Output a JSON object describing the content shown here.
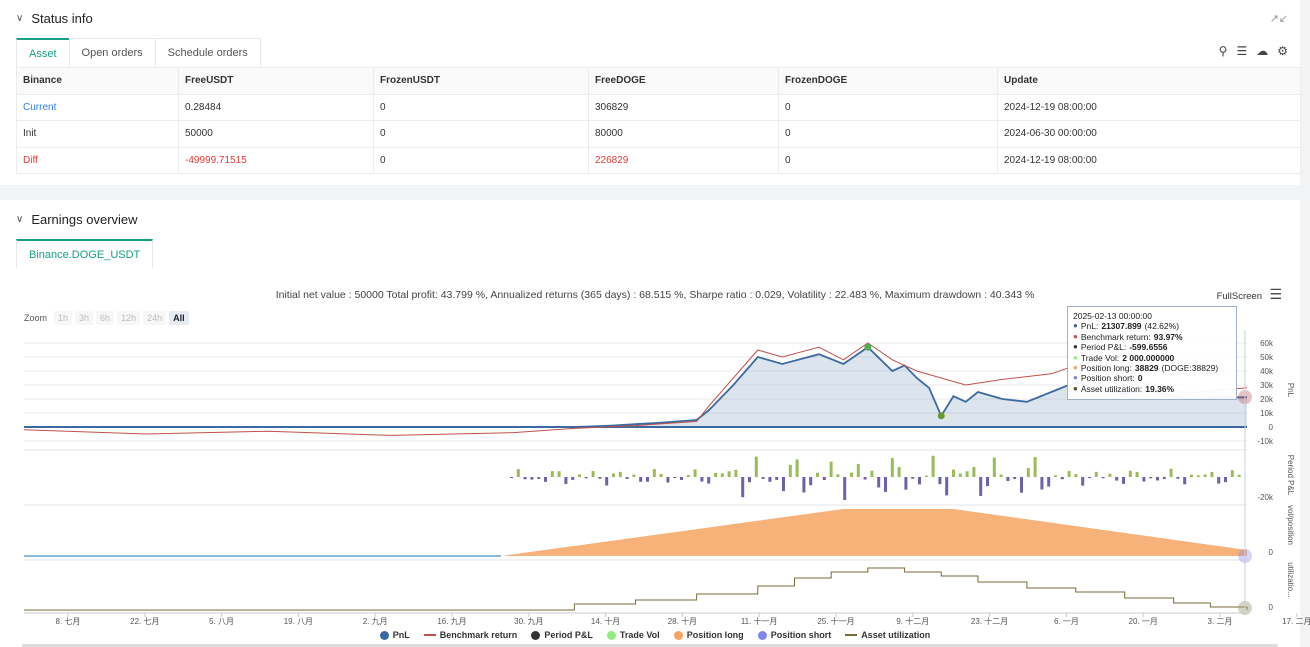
{
  "status": {
    "title": "Status info",
    "tabs": [
      "Asset",
      "Open orders",
      "Schedule orders"
    ],
    "columns": [
      "Binance",
      "FreeUSDT",
      "FrozenUSDT",
      "FreeDOGE",
      "FrozenDOGE",
      "Update"
    ],
    "rows": [
      [
        "Current",
        "0.28484",
        "0",
        "306829",
        "0",
        "2024-12-19 08:00:00"
      ],
      [
        "Init",
        "50000",
        "0",
        "80000",
        "0",
        "2024-06-30 00:00:00"
      ],
      [
        "Diff",
        "-49999.71515",
        "0",
        "226829",
        "0",
        "2024-12-19 08:00:00"
      ]
    ]
  },
  "earnings": {
    "title": "Earnings overview",
    "tab": "Binance.DOGE_USDT",
    "summary": "Initial net value : 50000 Total profit: 43.799 %, Annualized returns (365 days) : 68.515 %, Sharpe ratio : 0.029, Volatility : 22.483 %, Maximum drawdown : 40.343 %",
    "fullscreen": "FullScreen",
    "zoom_label": "Zoom",
    "zoom_buttons": [
      "1h",
      "3h",
      "6h",
      "12h",
      "24h",
      "All"
    ]
  },
  "tooltip": {
    "date": "2025-02-13 00:00:00",
    "rows": [
      {
        "label": "PnL:",
        "value": "21307.899",
        "extra": "(42.62%)",
        "color": "#3b6aa0"
      },
      {
        "label": "Benchmark return:",
        "value": "93.97%",
        "extra": "",
        "color": "#c0504d"
      },
      {
        "label": "Period P&L:",
        "value": "-599.6556",
        "extra": "",
        "color": "#333333"
      },
      {
        "label": "Trade Vol:",
        "value": "2 000.000000",
        "extra": "",
        "color": "#90ed7d"
      },
      {
        "label": "Position long:",
        "value": "38829",
        "extra": "(DOGE:38829)",
        "color": "#f7a35c"
      },
      {
        "label": "Position short:",
        "value": "0",
        "extra": "",
        "color": "#8085e9"
      },
      {
        "label": "Asset utilization:",
        "value": "19.36%",
        "extra": "",
        "color": "#5a4a2a"
      }
    ]
  },
  "legend": [
    {
      "name": "PnL",
      "color": "#3b6aa0",
      "kind": "dot"
    },
    {
      "name": "Benchmark return",
      "color": "#c0504d",
      "kind": "line"
    },
    {
      "name": "Period P&L",
      "color": "#333333",
      "kind": "dot"
    },
    {
      "name": "Trade Vol",
      "color": "#90ed7d",
      "kind": "dot"
    },
    {
      "name": "Position long",
      "color": "#f7a35c",
      "kind": "dot"
    },
    {
      "name": "Position short",
      "color": "#8085e9",
      "kind": "dot"
    },
    {
      "name": "Asset utilization",
      "color": "#7a6a3a",
      "kind": "line"
    }
  ],
  "chart_data": {
    "type": "line",
    "x_tick_labels": [
      "8. 七月",
      "22. 七月",
      "5. 八月",
      "19. 八月",
      "2. 九月",
      "16. 九月",
      "30. 九月",
      "14. 十月",
      "28. 十月",
      "11. 十一月",
      "25. 十一月",
      "9. 十二月",
      "23. 十二月",
      "6. 一月",
      "20. 一月",
      "3. 二月",
      "17. 二月"
    ],
    "panels": [
      {
        "name": "PnL",
        "y_ticks": [
          "60k",
          "50k",
          "40k",
          "30k",
          "20k",
          "10k",
          "0",
          "-10k"
        ],
        "ylim": [
          -10000,
          60000
        ]
      },
      {
        "name": "Period P&L",
        "y_ticks": [
          "-20k"
        ]
      },
      {
        "name": "vol/position",
        "y_ticks": [
          "0"
        ]
      },
      {
        "name": "utilizatio...",
        "y_ticks": [
          "0"
        ]
      }
    ],
    "series": [
      {
        "name": "PnL",
        "x": [
          0,
          0.15,
          0.3,
          0.45,
          0.48,
          0.5,
          0.52,
          0.55,
          0.56,
          0.58,
          0.6,
          0.62,
          0.65,
          0.67,
          0.69,
          0.71,
          0.72,
          0.73,
          0.74,
          0.75,
          0.76,
          0.77,
          0.78,
          0.8,
          0.82,
          0.84,
          0.86,
          0.88,
          0.9,
          0.92,
          0.95,
          0.98,
          1.0
        ],
        "values": [
          0,
          0,
          0,
          0,
          1000,
          2000,
          3000,
          5000,
          12000,
          30000,
          50000,
          45000,
          52000,
          45000,
          57000,
          40000,
          44000,
          35000,
          28000,
          8000,
          22000,
          18000,
          25000,
          20000,
          18000,
          25000,
          32000,
          26000,
          24000,
          26000,
          20000,
          21000,
          21307.899
        ]
      },
      {
        "name": "Benchmark return",
        "x": [
          0,
          0.1,
          0.2,
          0.3,
          0.4,
          0.45,
          0.5,
          0.55,
          0.56,
          0.58,
          0.6,
          0.62,
          0.65,
          0.67,
          0.69,
          0.71,
          0.73,
          0.75,
          0.77,
          0.8,
          0.84,
          0.86,
          0.9,
          0.95,
          1.0
        ],
        "values": [
          -2000,
          -5000,
          -3000,
          -6000,
          -4000,
          -1000,
          1000,
          4000,
          15000,
          35000,
          55000,
          50000,
          57000,
          48000,
          60000,
          48000,
          40000,
          35000,
          30000,
          34000,
          38000,
          44000,
          36000,
          24000,
          28000
        ]
      }
    ]
  }
}
